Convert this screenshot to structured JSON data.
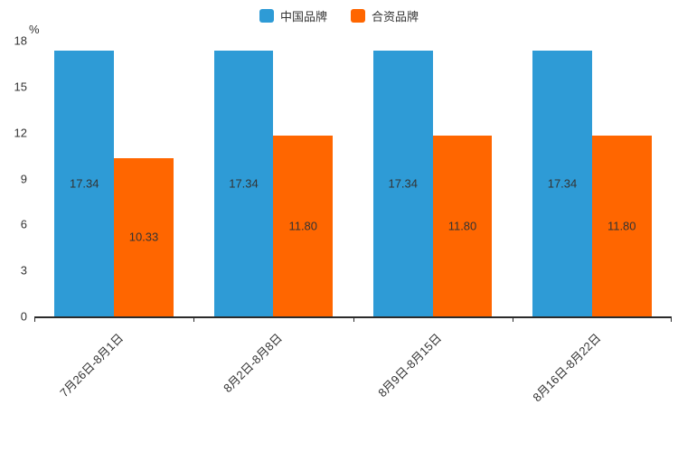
{
  "chart_data": {
    "type": "bar",
    "title": "",
    "unit": "%",
    "categories": [
      "7月26日-8月1日",
      "8月2日-8月8日",
      "8月9日-8月15日",
      "8月16日-8月22日"
    ],
    "series": [
      {
        "name": "中国品牌",
        "color": "#2E9BD6",
        "values": [
          17.34,
          17.34,
          17.34,
          17.34
        ]
      },
      {
        "name": "合资品牌",
        "color": "#FF6600",
        "values": [
          10.33,
          11.8,
          11.8,
          11.8
        ]
      }
    ],
    "value_label_decimals": 2,
    "ylim": [
      0,
      18
    ],
    "ytick_step": 3,
    "legend_position": "top",
    "grid": false,
    "axis_color": "#2b2b2b",
    "text_color": "#333333"
  }
}
